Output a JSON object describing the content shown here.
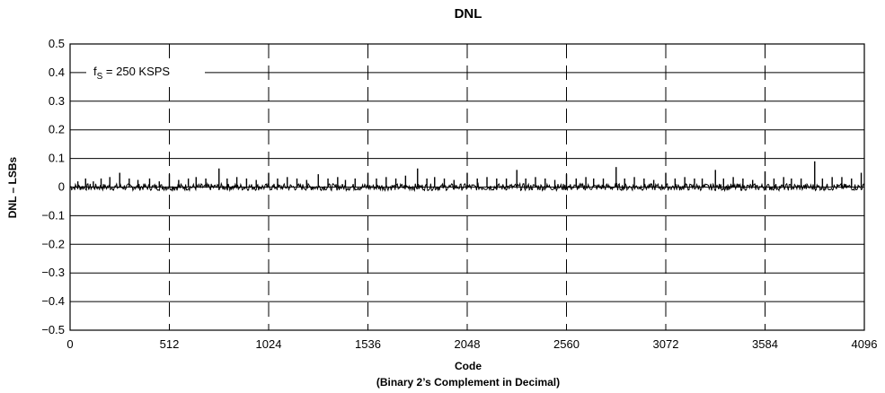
{
  "chart_data": {
    "type": "line",
    "title": "DNL",
    "xlabel": "Code",
    "xlabel_sub": "(Binary 2’s Complement in Decimal)",
    "ylabel": "DNL – LSBs",
    "xlim": [
      0,
      4096
    ],
    "ylim": [
      -0.5,
      0.5
    ],
    "x_ticks": [
      0,
      512,
      1024,
      1536,
      2048,
      2560,
      3072,
      3584,
      4096
    ],
    "x_tick_labels": [
      "0",
      "512",
      "1024",
      "1536",
      "2048",
      "2560",
      "3072",
      "3584",
      "4096"
    ],
    "y_ticks": [
      -0.5,
      -0.4,
      -0.3,
      -0.2,
      -0.1,
      0,
      0.1,
      0.2,
      0.3,
      0.4,
      0.5
    ],
    "y_tick_labels": [
      "−0.5",
      "−0.4",
      "−0.3",
      "−0.2",
      "−0.1",
      "0",
      "0.1",
      "0.2",
      "0.3",
      "0.4",
      "0.5"
    ],
    "grid": {
      "horizontal": "solid",
      "vertical": "dashed"
    },
    "annotation": {
      "prefix": "f",
      "subscript": "S",
      "suffix": " = 250 KSPS"
    },
    "series": [
      {
        "x": [
          40,
          80,
          120,
          160,
          205,
          256,
          305,
          350,
          410,
          460,
          512,
          560,
          610,
          650,
          700,
          768,
          810,
          860,
          910,
          960,
          1024,
          1070,
          1120,
          1170,
          1220,
          1280,
          1330,
          1380,
          1420,
          1470,
          1536,
          1580,
          1630,
          1680,
          1730,
          1792,
          1840,
          1880,
          1930,
          1980,
          2048,
          2100,
          2150,
          2200,
          2250,
          2304,
          2350,
          2400,
          2450,
          2500,
          2560,
          2610,
          2660,
          2700,
          2750,
          2816,
          2860,
          2910,
          2960,
          3010,
          3072,
          3120,
          3170,
          3220,
          3260,
          3328,
          3370,
          3420,
          3470,
          3520,
          3584,
          3630,
          3680,
          3720,
          3770,
          3840,
          3880,
          3930,
          3980,
          4030,
          4080
        ],
        "y": [
          0.02,
          0.03,
          0.02,
          0.03,
          0.035,
          0.05,
          0.03,
          0.025,
          0.03,
          0.02,
          0.045,
          0.025,
          0.03,
          0.035,
          0.03,
          0.065,
          0.03,
          0.035,
          0.03,
          0.025,
          0.05,
          0.03,
          0.035,
          0.03,
          0.025,
          0.045,
          0.03,
          0.035,
          0.025,
          0.03,
          0.05,
          0.03,
          0.035,
          0.03,
          0.04,
          0.065,
          0.03,
          0.035,
          0.03,
          0.025,
          0.05,
          0.03,
          0.035,
          0.03,
          0.03,
          0.06,
          0.03,
          0.035,
          0.03,
          0.025,
          0.045,
          0.03,
          0.035,
          0.03,
          0.03,
          0.07,
          0.03,
          0.035,
          0.03,
          0.025,
          0.05,
          0.03,
          0.035,
          0.03,
          0.03,
          0.06,
          0.03,
          0.035,
          0.03,
          0.025,
          0.055,
          0.03,
          0.035,
          0.03,
          0.03,
          0.09,
          0.03,
          0.035,
          0.035,
          0.03,
          0.05
        ],
        "baseline_noise": 0.012
      }
    ]
  }
}
